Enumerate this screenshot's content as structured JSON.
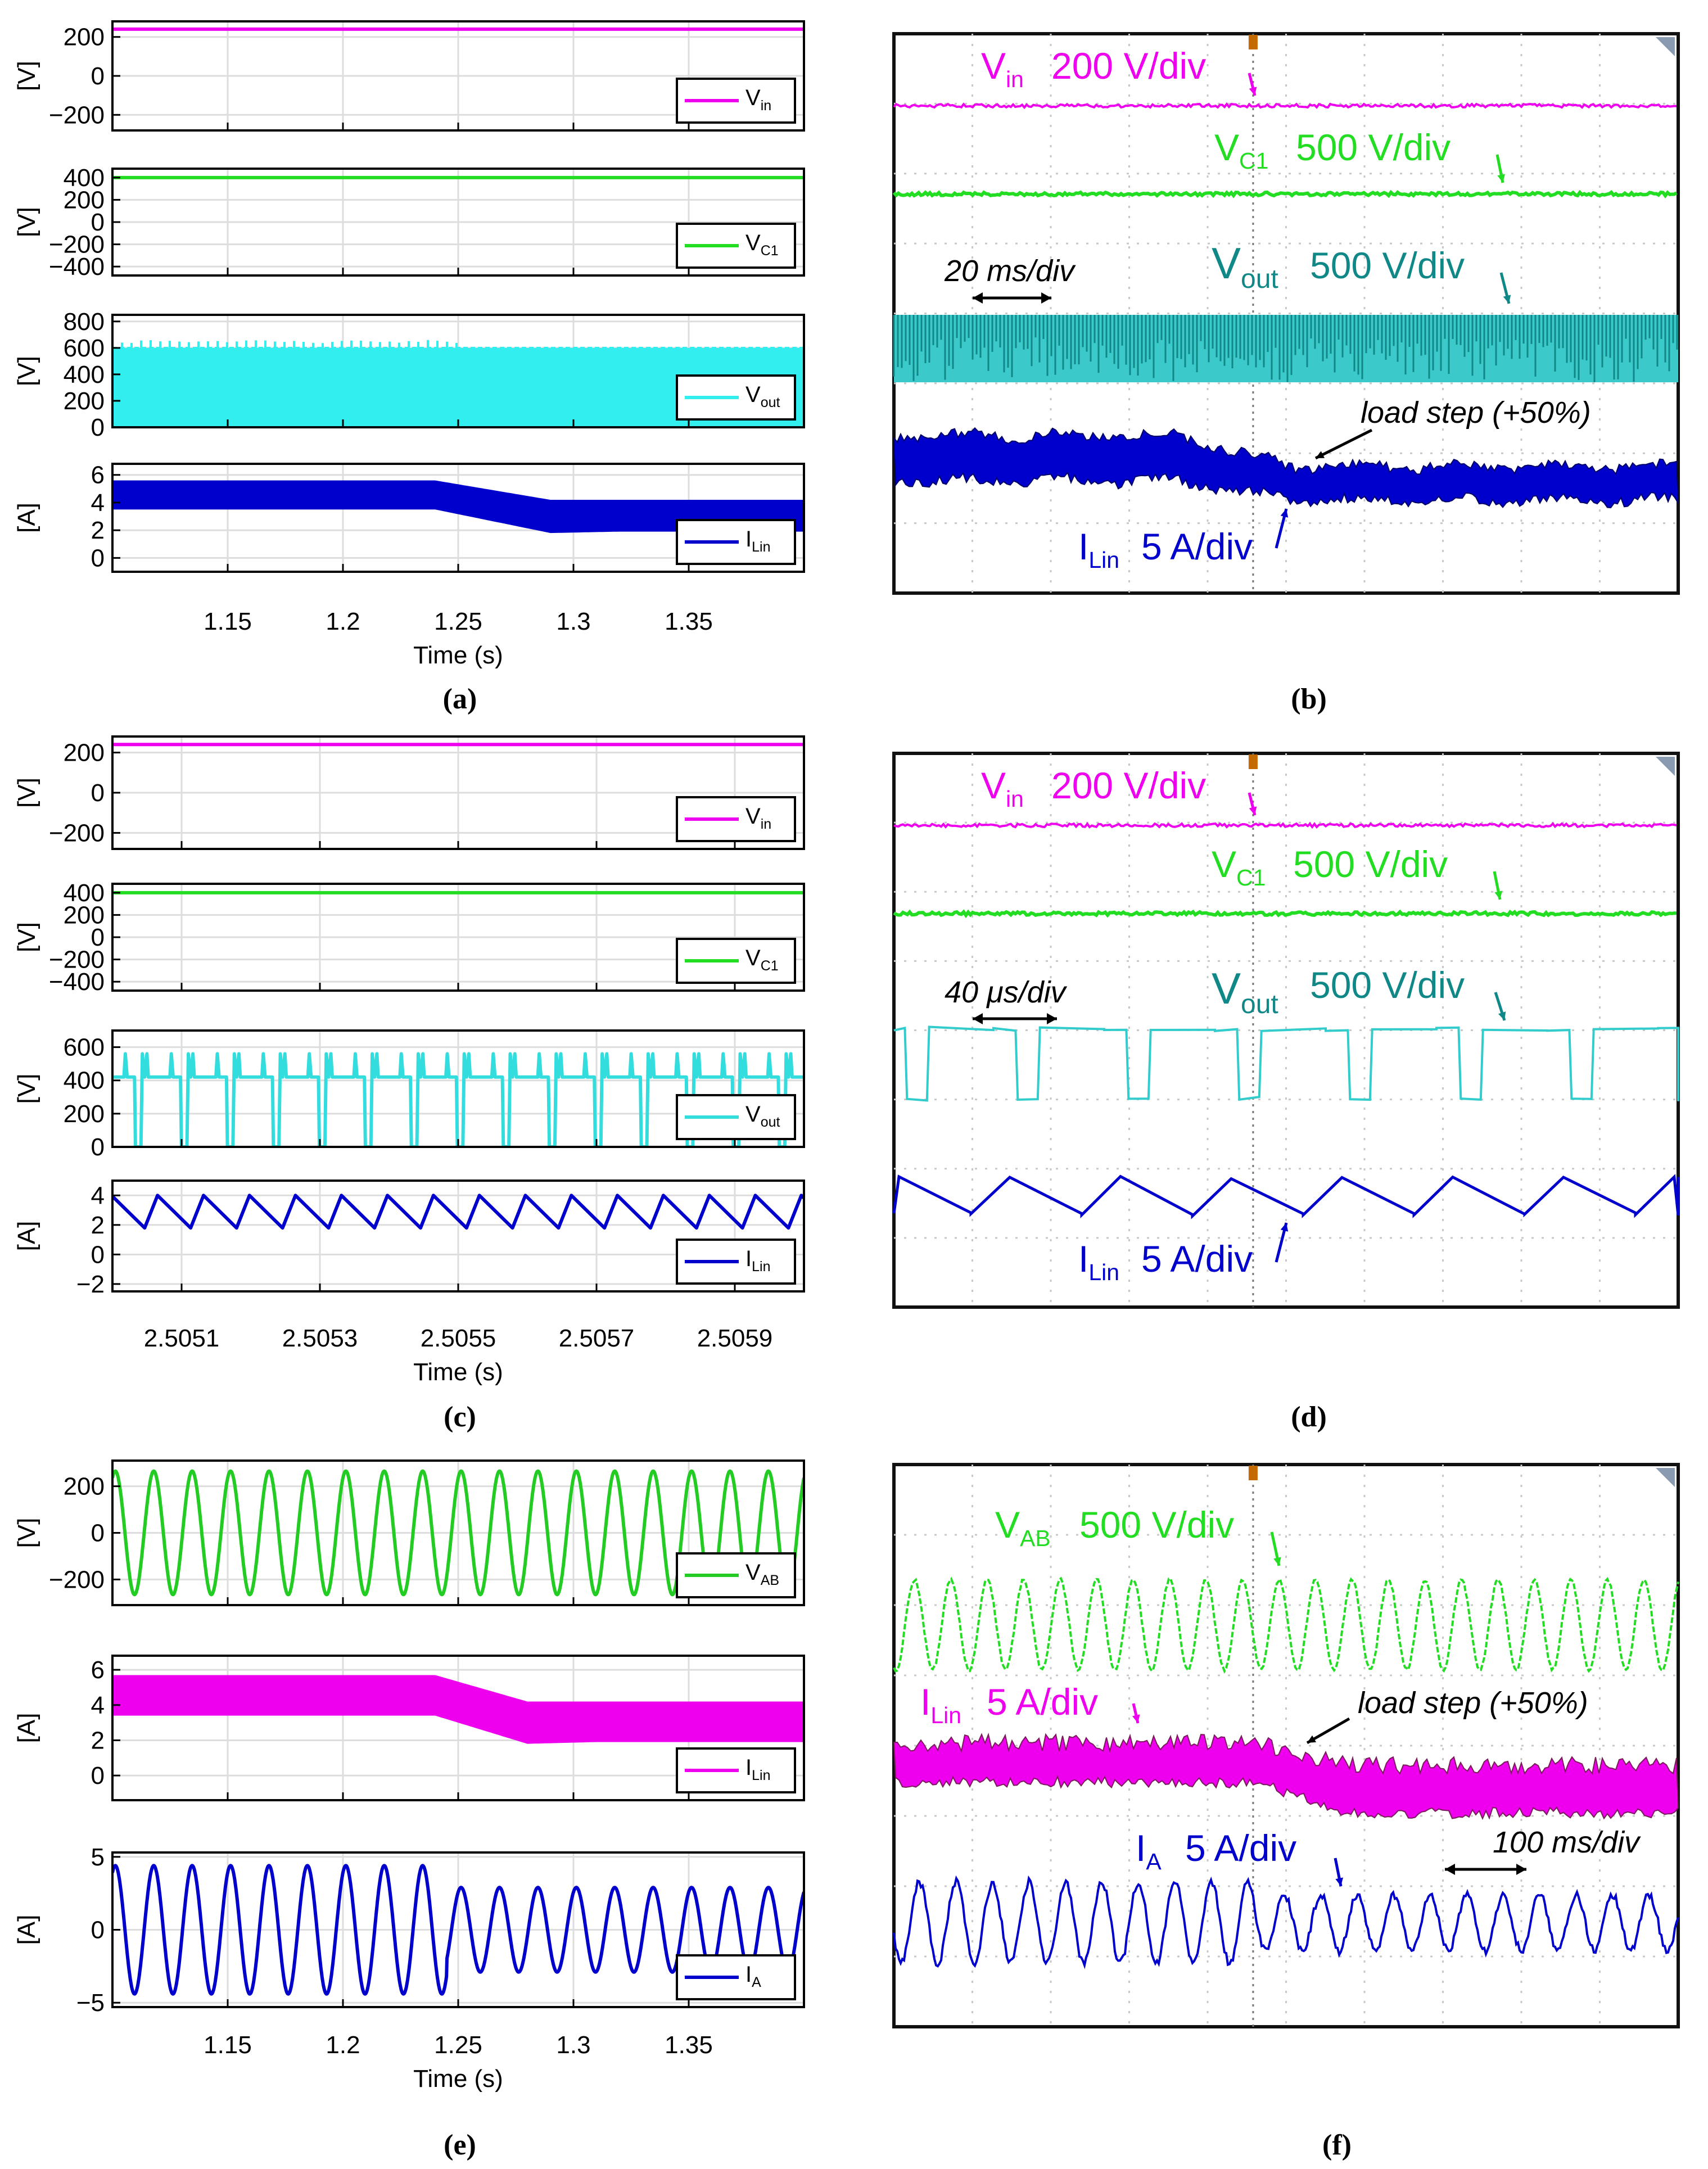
{
  "panels": [
    {
      "label": "(a)"
    },
    {
      "label": "(b)"
    },
    {
      "label": "(c)"
    },
    {
      "label": "(d)"
    },
    {
      "label": "(e)"
    },
    {
      "label": "(f)"
    }
  ],
  "chart_data": [
    {
      "id": "a",
      "type": "line",
      "xlabel": "Time (s)",
      "x_ticks": [
        "1.15",
        "1.2",
        "1.25",
        "1.3",
        "1.35"
      ],
      "x_tick_values": [
        1.15,
        1.2,
        1.25,
        1.3,
        1.35
      ],
      "xlim": [
        1.1,
        1.4
      ],
      "subplots": [
        {
          "ylabel": "[V]",
          "legend": "V",
          "legend_sub": "in",
          "color": "#ee00ee",
          "ylim": [
            -280,
            280
          ],
          "yticks": [
            200,
            0,
            -200
          ],
          "ytick_labels": [
            "200",
            "0",
            "−200"
          ],
          "signal": "dc",
          "value": 240
        },
        {
          "ylabel": "[V]",
          "legend": "V",
          "legend_sub": "C1",
          "color": "#22dd22",
          "ylim": [
            -480,
            480
          ],
          "yticks": [
            400,
            200,
            0,
            -200,
            -400
          ],
          "ytick_labels": [
            "400",
            "200",
            "0",
            "−200",
            "−400"
          ],
          "signal": "dc",
          "value": 400
        },
        {
          "ylabel": "[V]",
          "legend": "V",
          "legend_sub": "out",
          "color": "#33eeee",
          "ylim": [
            0,
            850
          ],
          "yticks": [
            800,
            600,
            400,
            200,
            0
          ],
          "ytick_labels": [
            "800",
            "600",
            "400",
            "200",
            "0"
          ],
          "signal": "band",
          "low": 0,
          "high": 600,
          "spike_to": 660,
          "spike_until": 1.25
        },
        {
          "ylabel": "[A]",
          "legend": "I",
          "legend_sub": "Lin",
          "color": "#0000cc",
          "ylim": [
            -1,
            6.8
          ],
          "yticks": [
            6,
            4,
            2,
            0
          ],
          "ytick_labels": [
            "6",
            "4",
            "2",
            "0"
          ],
          "signal": "envelope",
          "before": [
            3.5,
            5.6
          ],
          "after": [
            1.9,
            4.2
          ],
          "step_start": 1.24,
          "step_end": 1.29
        }
      ]
    },
    {
      "id": "b",
      "type": "oscilloscope",
      "timebase": "20 ms/div",
      "annotation": "load step (+50%)",
      "channels": [
        {
          "name": "V",
          "sub": "in",
          "scale": "200 V/div",
          "color": "#ee00ee"
        },
        {
          "name": "V",
          "sub": "C1",
          "scale": "500 V/div",
          "color": "#22dd22"
        },
        {
          "name": "V",
          "sub": "out",
          "scale": "500 V/div",
          "color": "#118888"
        },
        {
          "name": "I",
          "sub": "Lin",
          "scale": "5 A/div",
          "color": "#0000cc"
        }
      ]
    },
    {
      "id": "c",
      "type": "line",
      "xlabel": "Time (s)",
      "x_ticks": [
        "2.5051",
        "2.5053",
        "2.5055",
        "2.5057",
        "2.5059"
      ],
      "x_tick_values": [
        2.5051,
        2.5053,
        2.5055,
        2.5057,
        2.5059
      ],
      "xlim": [
        2.505,
        2.506
      ],
      "subplots": [
        {
          "ylabel": "[V]",
          "legend": "V",
          "legend_sub": "in",
          "color": "#ee00ee",
          "ylim": [
            -280,
            280
          ],
          "yticks": [
            200,
            0,
            -200
          ],
          "ytick_labels": [
            "200",
            "0",
            "−200"
          ],
          "signal": "dc",
          "value": 240
        },
        {
          "ylabel": "[V]",
          "legend": "V",
          "legend_sub": "C1",
          "color": "#22dd22",
          "ylim": [
            -480,
            480
          ],
          "yticks": [
            400,
            200,
            0,
            -200,
            -400
          ],
          "ytick_labels": [
            "400",
            "200",
            "0",
            "−200",
            "−400"
          ],
          "signal": "dc",
          "value": 400
        },
        {
          "ylabel": "[V]",
          "legend": "V",
          "legend_sub": "out",
          "color": "#33dddd",
          "ylim": [
            0,
            700
          ],
          "yticks": [
            600,
            400,
            200,
            0
          ],
          "ytick_labels": [
            "600",
            "400",
            "200",
            "0"
          ],
          "signal": "pulse",
          "period": 6.65e-05,
          "high": 560,
          "mid": 420,
          "low": 0
        },
        {
          "ylabel": "[A]",
          "legend": "I",
          "legend_sub": "Lin",
          "color": "#0000cc",
          "ylim": [
            -2.5,
            5
          ],
          "yticks": [
            4,
            2,
            0,
            -2
          ],
          "ytick_labels": [
            "4",
            "2",
            "0",
            "−2"
          ],
          "signal": "saw",
          "period": 6.65e-05,
          "low": 1.8,
          "high": 4.0
        }
      ]
    },
    {
      "id": "d",
      "type": "oscilloscope",
      "timebase": "40 μs/div",
      "channels": [
        {
          "name": "V",
          "sub": "in",
          "scale": "200 V/div",
          "color": "#ee00ee"
        },
        {
          "name": "V",
          "sub": "C1",
          "scale": "500 V/div",
          "color": "#22dd22"
        },
        {
          "name": "V",
          "sub": "out",
          "scale": "500 V/div",
          "color": "#118888"
        },
        {
          "name": "I",
          "sub": "Lin",
          "scale": "5 A/div",
          "color": "#0000cc"
        }
      ]
    },
    {
      "id": "e",
      "type": "line",
      "xlabel": "Time (s)",
      "x_ticks": [
        "1.15",
        "1.2",
        "1.25",
        "1.3",
        "1.35"
      ],
      "x_tick_values": [
        1.15,
        1.2,
        1.25,
        1.3,
        1.35
      ],
      "xlim": [
        1.1,
        1.4
      ],
      "subplots": [
        {
          "ylabel": "[V]",
          "legend": "V",
          "legend_sub": "AB",
          "color": "#22cc22",
          "ylim": [
            -310,
            310
          ],
          "yticks": [
            200,
            0,
            -200
          ],
          "ytick_labels": [
            "200",
            "0",
            "−200"
          ],
          "signal": "sine",
          "freq": 60,
          "amp": 265
        },
        {
          "ylabel": "[A]",
          "legend": "I",
          "legend_sub": "Lin",
          "color": "#ee00ee",
          "ylim": [
            -1.4,
            6.8
          ],
          "yticks": [
            6,
            4,
            2,
            0
          ],
          "ytick_labels": [
            "6",
            "4",
            "2",
            "0"
          ],
          "signal": "envelope",
          "before": [
            3.4,
            5.7
          ],
          "after": [
            1.9,
            4.2
          ],
          "step_start": 1.24,
          "step_end": 1.28
        },
        {
          "ylabel": "[A]",
          "legend": "I",
          "legend_sub": "A",
          "color": "#0000cc",
          "ylim": [
            -5.3,
            5.3
          ],
          "yticks": [
            5,
            0,
            -5
          ],
          "ytick_labels": [
            "5",
            "0",
            "−5"
          ],
          "signal": "sine_step",
          "freq": 60,
          "amp_before": 4.4,
          "amp_after": 2.9,
          "step": 1.245
        }
      ]
    },
    {
      "id": "f",
      "type": "oscilloscope",
      "timebase": "100 ms/div",
      "annotation": "load step (+50%)",
      "channels": [
        {
          "name": "V",
          "sub": "AB",
          "scale": "500 V/div",
          "color": "#22dd22"
        },
        {
          "name": "I",
          "sub": "Lin",
          "scale": "5 A/div",
          "color": "#ee00ee"
        },
        {
          "name": "I",
          "sub": "A",
          "scale": "5 A/div",
          "color": "#0000cc"
        }
      ]
    }
  ]
}
